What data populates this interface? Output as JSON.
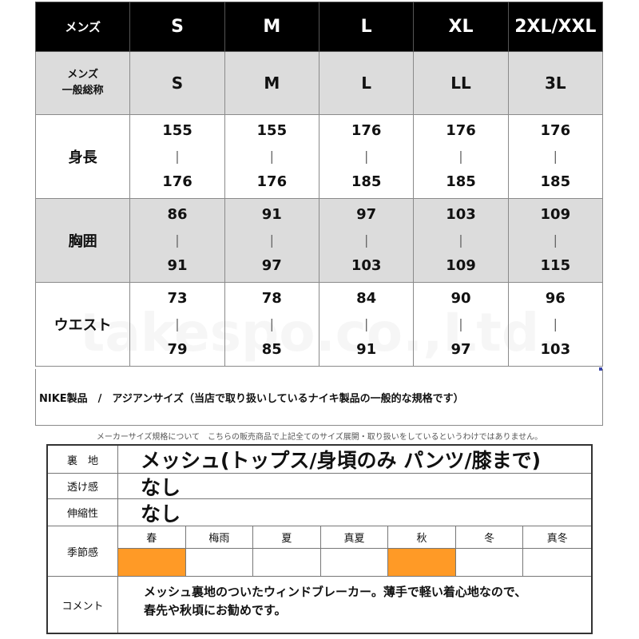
{
  "size_chart": {
    "header": {
      "label": "メンズ",
      "sizes": [
        "S",
        "M",
        "L",
        "XL",
        "2XL/XXL"
      ]
    },
    "general": {
      "label_line1": "メンズ",
      "label_line2": "一般総称",
      "values": [
        "S",
        "M",
        "L",
        "LL",
        "3L"
      ]
    },
    "rows": [
      {
        "label": "身長",
        "ranges": [
          [
            "155",
            "176"
          ],
          [
            "155",
            "176"
          ],
          [
            "176",
            "185"
          ],
          [
            "176",
            "185"
          ],
          [
            "176",
            "185"
          ]
        ]
      },
      {
        "label": "胸囲",
        "ranges": [
          [
            "86",
            "91"
          ],
          [
            "91",
            "97"
          ],
          [
            "97",
            "103"
          ],
          [
            "103",
            "109"
          ],
          [
            "109",
            "115"
          ]
        ]
      },
      {
        "label": "ウエスト",
        "ranges": [
          [
            "73",
            "79"
          ],
          [
            "78",
            "85"
          ],
          [
            "84",
            "91"
          ],
          [
            "90",
            "97"
          ],
          [
            "96",
            "103"
          ]
        ]
      }
    ],
    "separator": "|"
  },
  "note": "NIKE製品　/　アジアンサイズ（当店で取り扱いしているナイキ製品の一般的な規格です）",
  "disclaimer": "メーカーサイズ規格について　こちらの販売商品で上記全てのサイズ展開・取り扱いをしているというわけではありません。",
  "watermark": "takespo.co.,Ltd.",
  "spec": {
    "lining_label": "裏　地",
    "lining_value": "メッシュ(トップス/身頃のみ パンツ/膝まで)",
    "sheer_label": "透け感",
    "sheer_value": "なし",
    "stretch_label": "伸縮性",
    "stretch_value": "なし",
    "season_label": "季節感",
    "seasons": [
      "春",
      "梅雨",
      "夏",
      "真夏",
      "秋",
      "冬",
      "真冬"
    ],
    "season_marks": [
      true,
      false,
      false,
      false,
      true,
      false,
      false
    ],
    "mark_color": "#ff9a26",
    "comment_label": "コメント",
    "comment_line1": "メッシュ裏地のついたウィンドブレーカー。薄手で軽い着心地なので、",
    "comment_line2": "春先や秋頃にお勧めです。"
  }
}
